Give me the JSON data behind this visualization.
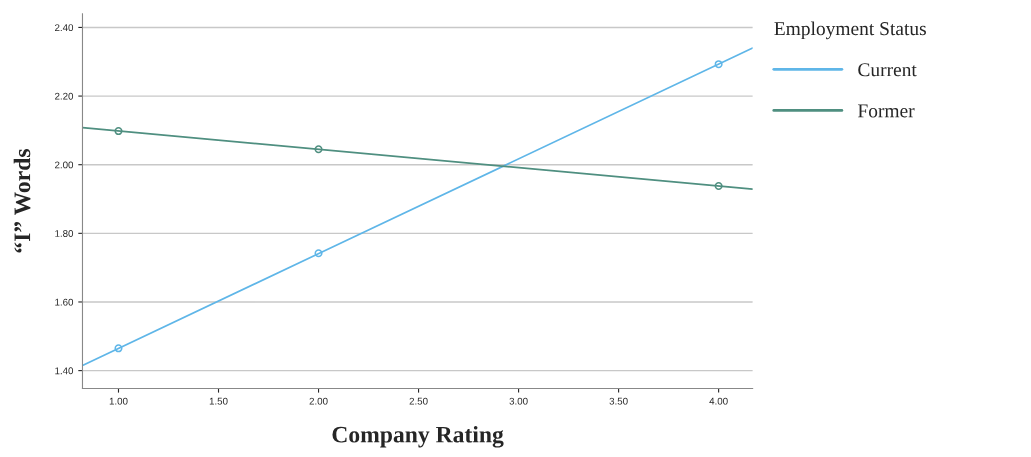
{
  "chart_data": {
    "type": "line",
    "xlabel": "Company Rating",
    "ylabel": "“I” Words",
    "legend_title": "Employment Status",
    "series": [
      {
        "name": "Current",
        "marker": "none",
        "color": "#5fb6e8",
        "x": [
          0.82,
          4.17
        ],
        "values": [
          1.415,
          2.34
        ]
      },
      {
        "name": "Former",
        "marker": "none",
        "color": "#4f8f80",
        "x": [
          0.82,
          4.17
        ],
        "values": [
          2.108,
          1.929
        ]
      },
      {
        "type": "scatter",
        "marker": "circle",
        "color": "#5fb6e8",
        "x": [
          1,
          2,
          4
        ],
        "values": [
          1.465,
          1.742,
          2.293
        ]
      },
      {
        "type": "scatter",
        "marker": "circle",
        "color": "#4f8f80",
        "x": [
          1,
          2,
          4
        ],
        "values": [
          2.098,
          2.045,
          1.938
        ]
      }
    ],
    "line_style": "solid",
    "grid": "y",
    "legend": "right",
    "xlim": [
      0.82,
      4.17
    ],
    "ylim": [
      1.348,
      2.44
    ],
    "xticks": [
      {
        "value": 1,
        "label": "1.00"
      },
      {
        "value": 1.5,
        "label": "1.50"
      },
      {
        "value": 2,
        "label": "2.00"
      },
      {
        "value": 2.5,
        "label": "2.50"
      },
      {
        "value": 3,
        "label": "3.00"
      },
      {
        "value": 3.5,
        "label": "3.50"
      },
      {
        "value": 4,
        "label": "4.00"
      }
    ],
    "yticks": [
      {
        "value": 1.4,
        "label": "1.40"
      },
      {
        "value": 1.6,
        "label": "1.60"
      },
      {
        "value": 1.8,
        "label": "1.80"
      },
      {
        "value": 2.0,
        "label": "2.00"
      },
      {
        "value": 2.2,
        "label": "2.20"
      },
      {
        "value": 2.4,
        "label": "2.40"
      }
    ]
  }
}
